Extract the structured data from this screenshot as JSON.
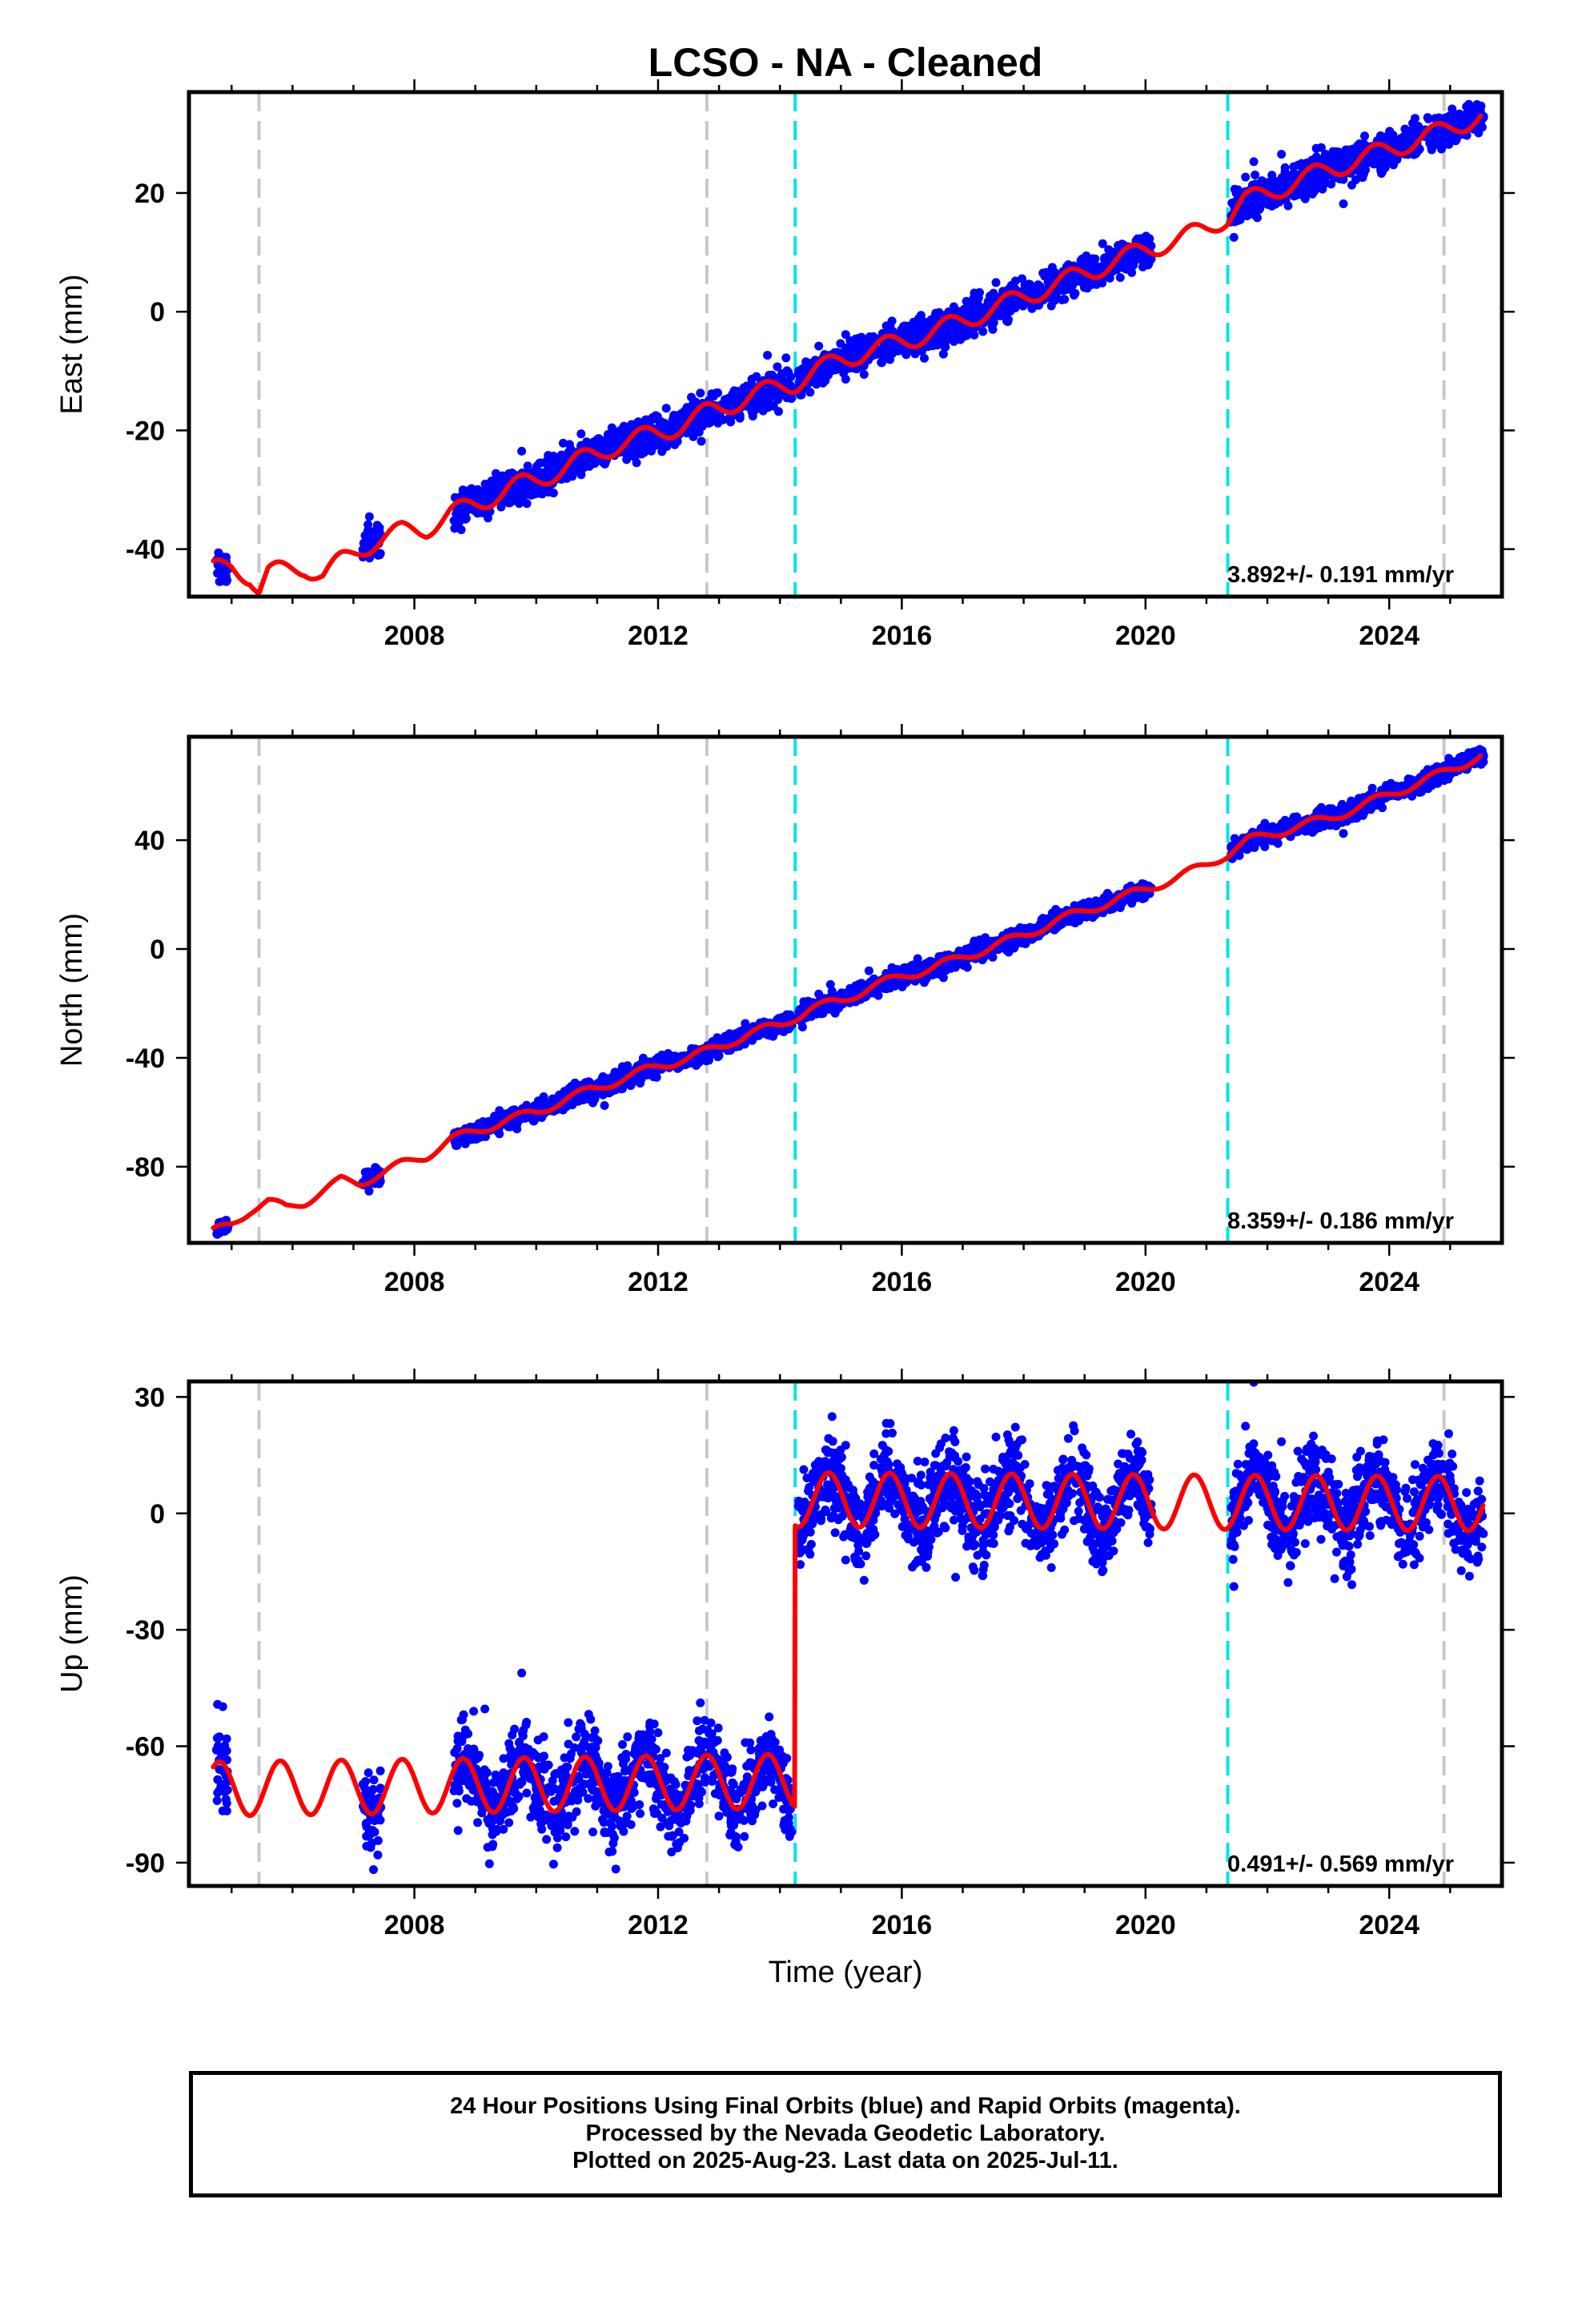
{
  "title": "LCSO  - NA - Cleaned",
  "footer": {
    "line1": "24 Hour Positions Using Final Orbits (blue) and Rapid Orbits (magenta).",
    "line2": "Processed by the Nevada Geodetic Laboratory.",
    "line3": "Plotted on 2025-Aug-23. Last data on 2025-Jul-11."
  },
  "colors": {
    "data": "#0000ff",
    "model": "#ff0000",
    "equipment_change": "#c8c8c8",
    "earthquake_offset": "#00e5e5",
    "frame": "#000000"
  },
  "chart_data": [
    {
      "type": "scatter",
      "component": "east",
      "ylabel": "East (mm)",
      "xlabel": "",
      "xlim": [
        2004.3,
        2025.85
      ],
      "ylim": [
        -48,
        37
      ],
      "xticks": [
        2008,
        2012,
        2016,
        2020,
        2024
      ],
      "yticks": [
        -40,
        -20,
        0,
        20
      ],
      "rate_label": "3.892+/- 0.191 mm/yr",
      "vlines_gray": [
        2005.45,
        2012.8,
        2024.9
      ],
      "vlines_cyan": [
        2014.25,
        2021.35
      ],
      "data_segments": [
        [
          2004.75,
          2004.95
        ],
        [
          2007.15,
          2007.45
        ],
        [
          2008.65,
          2014.2
        ],
        [
          2014.3,
          2020.1
        ],
        [
          2021.4,
          2025.55
        ]
      ],
      "series": [
        {
          "role": "model",
          "x": [
            2004.7,
            2005.0,
            2005.3,
            2005.45,
            2005.6,
            2005.9,
            2006.2,
            2006.5,
            2006.8,
            2007.1,
            2007.4,
            2007.8,
            2008.2,
            2008.6,
            2009.0,
            2009.3,
            2009.6,
            2010.0,
            2010.3,
            2010.6,
            2011.0,
            2011.3,
            2011.6,
            2012.0,
            2012.4,
            2012.8,
            2013.2,
            2013.6,
            2014.0,
            2014.25,
            2014.6,
            2015.0,
            2015.5,
            2016.0,
            2016.5,
            2017.0,
            2017.5,
            2018.0,
            2018.5,
            2019.0,
            2019.5,
            2020.0,
            2020.5,
            2021.0,
            2021.35,
            2021.6,
            2022.0,
            2022.5,
            2023.0,
            2023.5,
            2024.0,
            2024.5,
            2025.0,
            2025.5
          ],
          "y": [
            -43.5,
            -43,
            -44.5,
            -47,
            -44,
            -43.5,
            -43,
            -44.5,
            -42,
            -40,
            -38.5,
            -37,
            -36.5,
            -34,
            -32.5,
            -31,
            -29.5,
            -28.5,
            -27,
            -25.5,
            -24,
            -22.5,
            -21.5,
            -20.5,
            -19,
            -17,
            -15.5,
            -14,
            -12.5,
            -12,
            -10,
            -8,
            -6.5,
            -5,
            -3.5,
            -1.5,
            0.5,
            2.5,
            4.5,
            6.5,
            8.5,
            10.5,
            12,
            14,
            16,
            18.5,
            20,
            22,
            24,
            25.5,
            27.5,
            29,
            31,
            33
          ]
        }
      ]
    },
    {
      "type": "scatter",
      "component": "north",
      "ylabel": "North (mm)",
      "xlabel": "",
      "xlim": [
        2004.3,
        2025.85
      ],
      "ylim": [
        -108,
        78
      ],
      "xticks": [
        2008,
        2012,
        2016,
        2020,
        2024
      ],
      "yticks": [
        -80,
        -40,
        0,
        40
      ],
      "rate_label": "8.359+/- 0.186 mm/yr",
      "vlines_gray": [
        2005.45,
        2012.8,
        2024.9
      ],
      "vlines_cyan": [
        2014.25,
        2021.35
      ],
      "data_segments": [
        [
          2004.75,
          2004.95
        ],
        [
          2007.15,
          2007.45
        ],
        [
          2008.65,
          2014.2
        ],
        [
          2014.3,
          2020.1
        ],
        [
          2021.4,
          2025.55
        ]
      ],
      "series": [
        {
          "role": "model",
          "x": [
            2004.7,
            2005.0,
            2005.3,
            2005.6,
            2005.9,
            2006.2,
            2006.5,
            2006.8,
            2007.1,
            2007.4,
            2007.8,
            2008.2,
            2008.6,
            2009.0,
            2009.5,
            2010.0,
            2010.5,
            2011.0,
            2011.5,
            2012.0,
            2012.5,
            2013.0,
            2013.5,
            2014.0,
            2014.5,
            2015.0,
            2015.5,
            2016.0,
            2016.5,
            2017.0,
            2017.5,
            2018.0,
            2018.5,
            2019.0,
            2019.5,
            2020.0,
            2020.5,
            2021.0,
            2021.35,
            2021.7,
            2022.0,
            2022.5,
            2023.0,
            2023.5,
            2024.0,
            2024.5,
            2025.0,
            2025.5
          ],
          "y": [
            -104,
            -101,
            -96,
            -93,
            -95,
            -93,
            -89,
            -85,
            -86,
            -83,
            -79,
            -76,
            -70,
            -67,
            -63,
            -60,
            -55,
            -51,
            -47,
            -43,
            -40,
            -36,
            -31,
            -28,
            -22,
            -19,
            -14,
            -10,
            -7,
            -3,
            1,
            5,
            10,
            14,
            18,
            22,
            26,
            31,
            35,
            40,
            42,
            45,
            48,
            52,
            57,
            61,
            66,
            71
          ]
        }
      ]
    },
    {
      "type": "scatter",
      "component": "up",
      "ylabel": "Up (mm)",
      "xlabel": "Time (year)",
      "xlim": [
        2004.3,
        2025.85
      ],
      "ylim": [
        -96,
        34
      ],
      "xticks": [
        2008,
        2012,
        2016,
        2020,
        2024
      ],
      "yticks": [
        -90,
        -60,
        -30,
        0,
        30
      ],
      "rate_label": "0.491+/- 0.569 mm/yr",
      "vlines_gray": [
        2005.45,
        2012.8,
        2024.9
      ],
      "vlines_cyan": [
        2014.25,
        2021.35
      ],
      "data_segments": [
        [
          2004.75,
          2004.95
        ],
        [
          2007.15,
          2007.45
        ],
        [
          2008.65,
          2014.2
        ],
        [
          2014.3,
          2020.1
        ],
        [
          2021.4,
          2025.55
        ]
      ],
      "step": {
        "x": 2014.25,
        "before": -70,
        "after": 0
      },
      "series": [
        {
          "role": "model",
          "annual_amplitude": 7,
          "x": [
            2004.7,
            2014.24,
            2014.26,
            2025.55
          ],
          "y": [
            -71,
            -69,
            3.5,
            2.5
          ]
        }
      ]
    }
  ]
}
